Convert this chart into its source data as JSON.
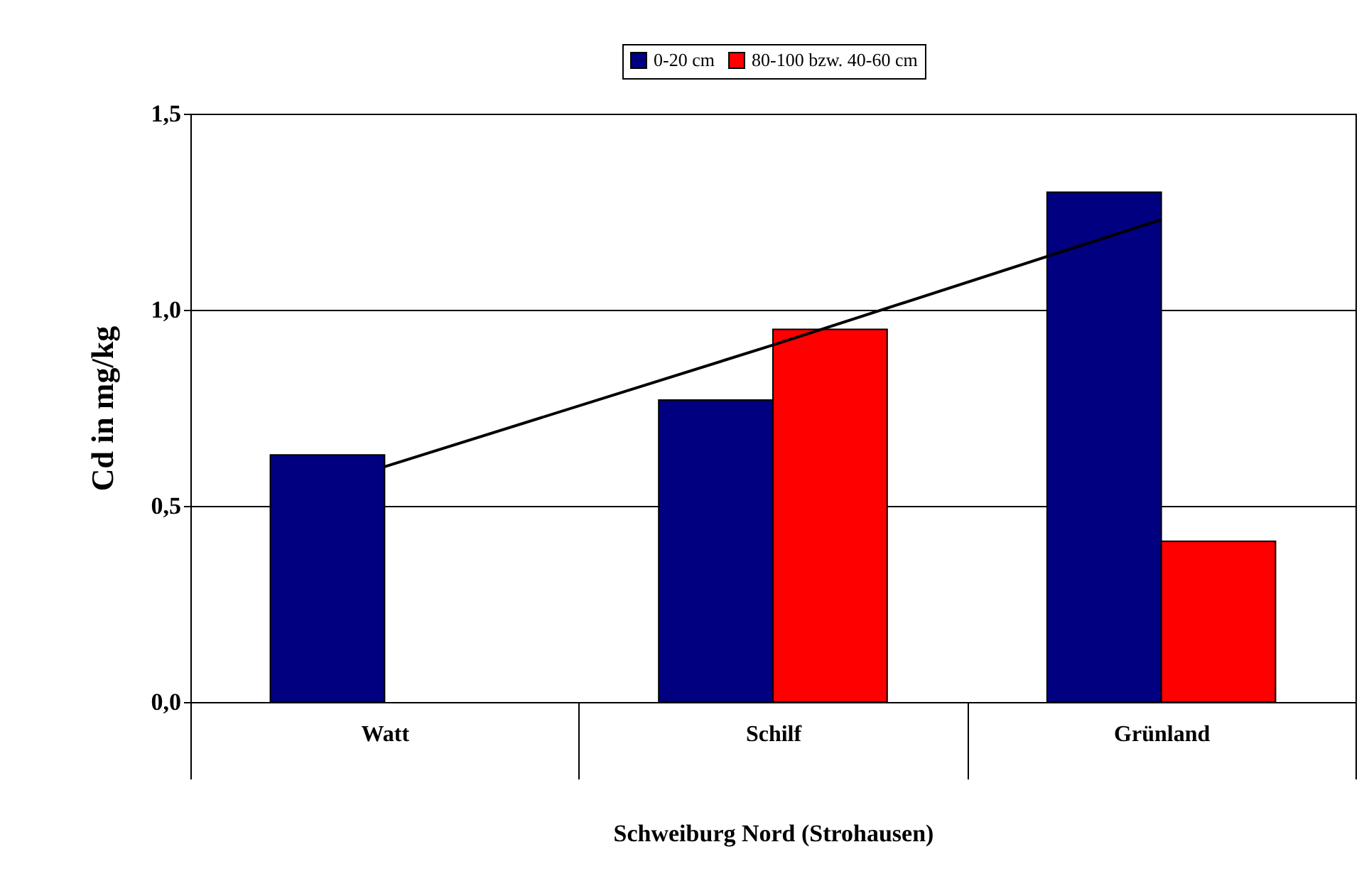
{
  "chart_data": {
    "type": "bar",
    "xlabel": "Schweiburg Nord (Strohausen)",
    "ylabel": "Cd in mg/kg",
    "categories": [
      "Watt",
      "Schilf",
      "Grünland"
    ],
    "series": [
      {
        "name": "0-20 cm",
        "color": "#000080",
        "values": [
          0.63,
          0.77,
          1.3
        ]
      },
      {
        "name": "80-100 bzw. 40-60 cm",
        "color": "#ff0000",
        "values": [
          null,
          0.95,
          0.41
        ]
      },
      {
        "type": "line",
        "color": "#000000",
        "x": [
          "Watt",
          "Schilf",
          "Grünland"
        ],
        "values": [
          0.6,
          0.91,
          1.23
        ]
      }
    ],
    "ylim": [
      0,
      1.5
    ],
    "yticks": [
      {
        "value": 0,
        "label": "0,0"
      },
      {
        "value": 0.5,
        "label": "0,5"
      },
      {
        "value": 1,
        "label": "1,0"
      },
      {
        "value": 1.5,
        "label": "1,5"
      }
    ],
    "grid": "y",
    "legend": "top"
  }
}
